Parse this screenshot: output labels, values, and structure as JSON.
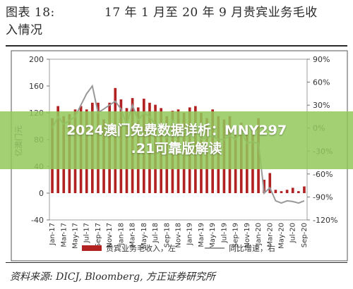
{
  "figure": {
    "title_line1": "图表 18:",
    "title_line2": "17 年 1 月至 20 年 9 月贵宾业务毛收",
    "title_line3": "入情况",
    "source": "资料来源: DICJ, Bloomberg, 方正证券研究所"
  },
  "overlay": {
    "text_line1": "2024澳门免费数据详析：MNY297",
    "text_line2": ".21可靠版解读"
  },
  "colors": {
    "bar": "#b22222",
    "line": "#999999",
    "overlay": "#92c85a",
    "frame": "#555555"
  },
  "chart_data": {
    "type": "bar",
    "title": "",
    "ylabel": "亿澳门元",
    "ylim": [
      -40,
      200
    ],
    "y2lim": [
      -120,
      90
    ],
    "yticks": [
      -40,
      0,
      40,
      80,
      120,
      160,
      200
    ],
    "y2ticks": [
      "-120%",
      "-90%",
      "-60%",
      "-30%",
      "0%",
      "30%",
      "60%",
      "90%"
    ],
    "x": [
      "Jan-17",
      "Feb-17",
      "Mar-17",
      "Apr-17",
      "May-17",
      "Jun-17",
      "Jul-17",
      "Aug-17",
      "Sep-17",
      "Oct-17",
      "Nov-17",
      "Dec-17",
      "Jan-18",
      "Feb-18",
      "Mar-18",
      "Apr-18",
      "May-18",
      "Jun-18",
      "Jul-18",
      "Aug-18",
      "Sep-18",
      "Oct-18",
      "Nov-18",
      "Dec-18",
      "Jan-19",
      "Feb-19",
      "Mar-19",
      "Apr-19",
      "May-19",
      "Jun-19",
      "Jul-19",
      "Aug-19",
      "Sep-19",
      "Oct-19",
      "Nov-19",
      "Dec-19",
      "Jan-20",
      "Feb-20",
      "Mar-20",
      "Apr-20",
      "May-20",
      "Jun-20",
      "Jul-20",
      "Aug-20",
      "Sep-20"
    ],
    "xticklabels": [
      "Jan-17",
      "Mar-17",
      "May-17",
      "Jul-17",
      "Sep-17",
      "Nov-17",
      "Jan-18",
      "Mar-18",
      "May-18",
      "Jul-18",
      "Sep-18",
      "Nov-18",
      "Jan-19",
      "Mar-19",
      "May-19",
      "Jul-19",
      "Sep-19",
      "Nov-19",
      "Jan-20",
      "Mar-20",
      "May-20",
      "Jul-20",
      "Sep-20"
    ],
    "series": [
      {
        "name": "贵宾业务毛收入，左",
        "axis": "left",
        "values": [
          112,
          130,
          115,
          118,
          125,
          130,
          125,
          135,
          135,
          110,
          135,
          157,
          140,
          127,
          142,
          128,
          141,
          135,
          132,
          127,
          115,
          123,
          125,
          120,
          128,
          130,
          120,
          112,
          125,
          115,
          110,
          115,
          100,
          105,
          100,
          98,
          112,
          20,
          30,
          5,
          3,
          5,
          8,
          3,
          10
        ]
      },
      {
        "name": "同比增速，右",
        "axis": "right",
        "values": [
          0,
          15,
          5,
          10,
          15,
          30,
          45,
          55,
          20,
          25,
          30,
          35,
          25,
          5,
          30,
          10,
          20,
          15,
          5,
          -5,
          -12,
          10,
          -10,
          -5,
          -10,
          5,
          -15,
          -12,
          -10,
          -15,
          -15,
          -10,
          -15,
          -5,
          -20,
          -18,
          -20,
          -85,
          -78,
          -95,
          -98,
          -95,
          -96,
          -98,
          -95
        ]
      }
    ],
    "legend_position": "bottom",
    "grid": false
  }
}
